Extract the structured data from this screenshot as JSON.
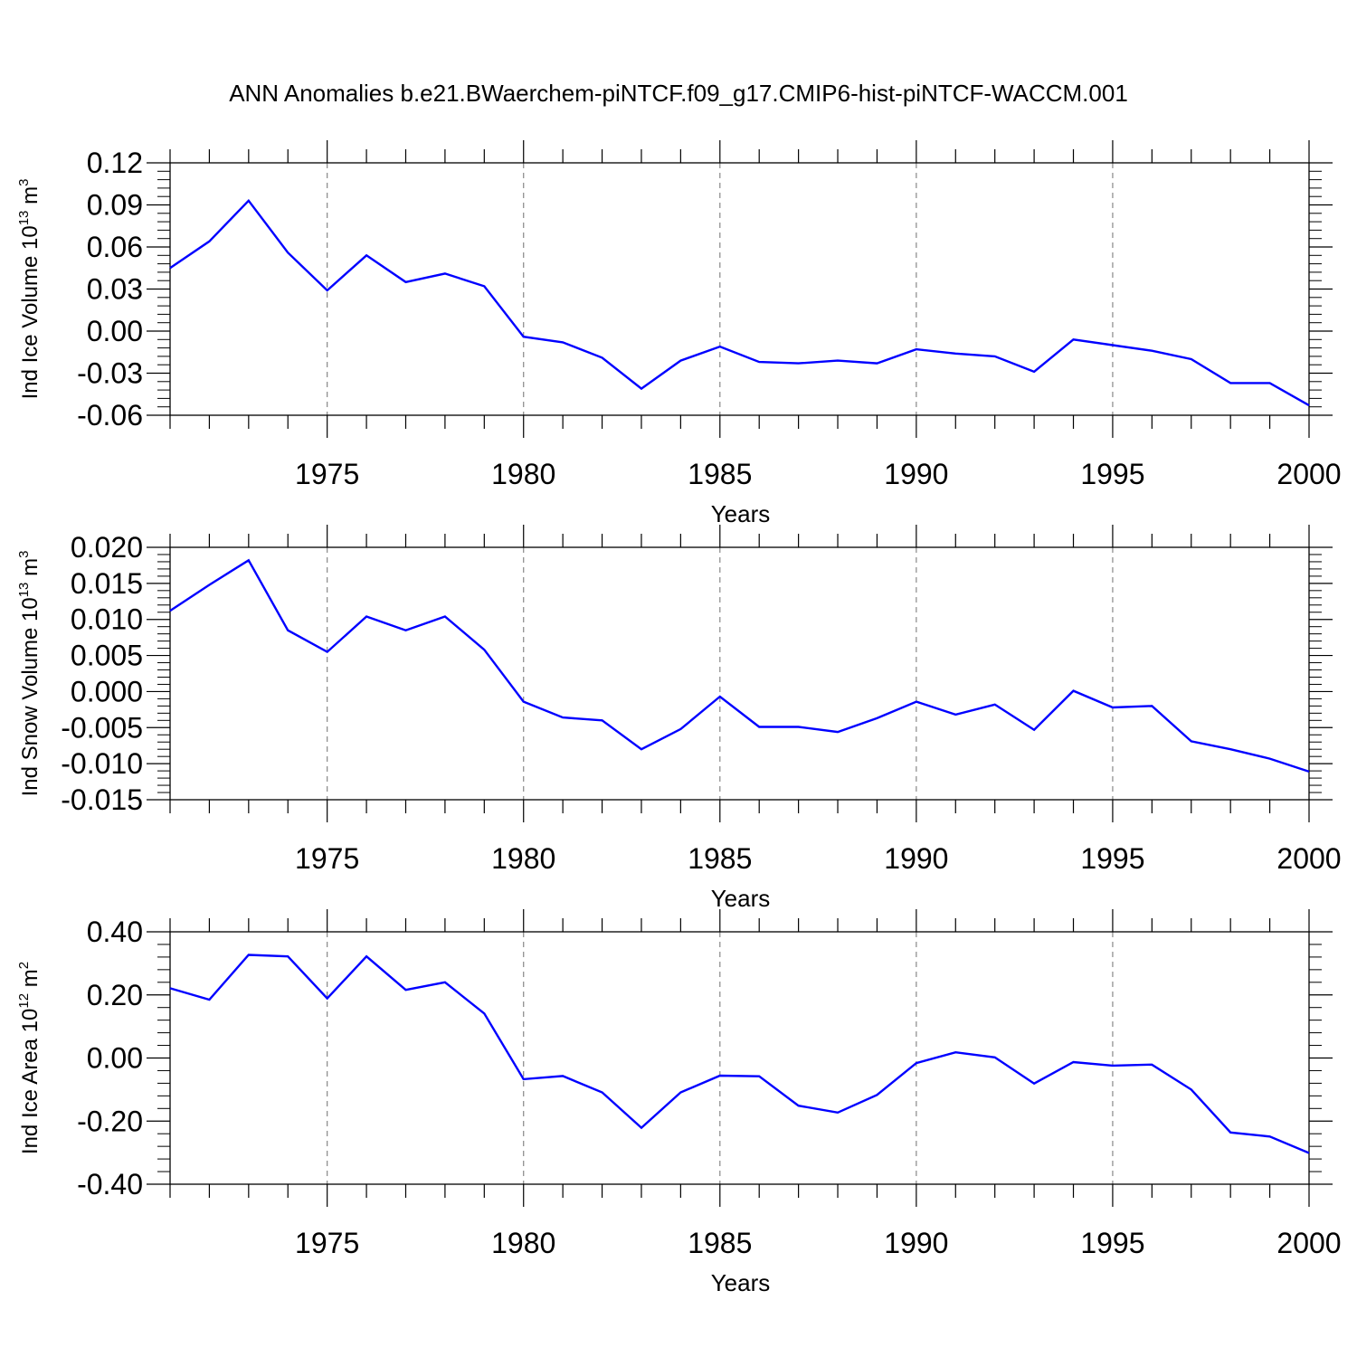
{
  "figure_title": "ANN Anomalies b.e21.BWaerchem-piNTCF.f09_g17.CMIP6-hist-piNTCF-WACCM.001",
  "chart_data": [
    {
      "type": "line",
      "title": "",
      "xlabel": "Years",
      "ylabel": {
        "text": "Ind Ice Volume 10",
        "sup": "13",
        "unit": " m",
        "unit_sup": "3"
      },
      "xlim": [
        1971,
        2000
      ],
      "ylim": [
        -0.06,
        0.12
      ],
      "xticks": [
        1975,
        1980,
        1985,
        1990,
        1995,
        2000
      ],
      "xtick_labels": [
        "1975",
        "1980",
        "1985",
        "1990",
        "1995",
        "2000"
      ],
      "yticks": [
        -0.06,
        -0.03,
        0.0,
        0.03,
        0.06,
        0.09,
        0.12
      ],
      "ytick_labels": [
        "-0.06",
        "-0.03",
        "0.00",
        "0.03",
        "0.06",
        "0.09",
        "0.12"
      ],
      "grid": "vertical dashed at major x ticks",
      "color": "#0000ff",
      "series": [
        {
          "x": [
            1971,
            1972,
            1973,
            1974,
            1975,
            1976,
            1977,
            1978,
            1979,
            1980,
            1981,
            1982,
            1983,
            1984,
            1985,
            1986,
            1987,
            1988,
            1989,
            1990,
            1991,
            1992,
            1993,
            1994,
            1995,
            1996,
            1997,
            1998,
            1999,
            2000
          ],
          "values": [
            0.045,
            0.064,
            0.093,
            0.056,
            0.029,
            0.054,
            0.035,
            0.041,
            0.032,
            -0.004,
            -0.008,
            -0.019,
            -0.041,
            -0.021,
            -0.011,
            -0.022,
            -0.023,
            -0.021,
            -0.023,
            -0.013,
            -0.016,
            -0.018,
            -0.029,
            -0.006,
            -0.01,
            -0.014,
            -0.02,
            -0.037,
            -0.037,
            -0.053
          ]
        }
      ]
    },
    {
      "type": "line",
      "title": "",
      "xlabel": "Years",
      "ylabel": {
        "text": "Ind Snow Volume 10",
        "sup": "13",
        "unit": " m",
        "unit_sup": "3"
      },
      "xlim": [
        1971,
        2000
      ],
      "ylim": [
        -0.015,
        0.02
      ],
      "xticks": [
        1975,
        1980,
        1985,
        1990,
        1995,
        2000
      ],
      "xtick_labels": [
        "1975",
        "1980",
        "1985",
        "1990",
        "1995",
        "2000"
      ],
      "yticks": [
        -0.015,
        -0.01,
        -0.005,
        0.0,
        0.005,
        0.01,
        0.015,
        0.02
      ],
      "ytick_labels": [
        "-0.015",
        "-0.010",
        "-0.005",
        "0.000",
        "0.005",
        "0.010",
        "0.015",
        "0.020"
      ],
      "grid": "vertical dashed at major x ticks",
      "color": "#0000ff",
      "series": [
        {
          "x": [
            1971,
            1972,
            1973,
            1974,
            1975,
            1976,
            1977,
            1978,
            1979,
            1980,
            1981,
            1982,
            1983,
            1984,
            1985,
            1986,
            1987,
            1988,
            1989,
            1990,
            1991,
            1992,
            1993,
            1994,
            1995,
            1996,
            1997,
            1998,
            1999,
            2000
          ],
          "values": [
            0.0112,
            0.0148,
            0.0182,
            0.0085,
            0.0055,
            0.0104,
            0.0085,
            0.0104,
            0.0058,
            -0.0014,
            -0.0036,
            -0.004,
            -0.008,
            -0.0052,
            -0.0007,
            -0.0049,
            -0.0049,
            -0.0056,
            -0.0037,
            -0.0014,
            -0.0032,
            -0.0018,
            -0.0053,
            0.0001,
            -0.0022,
            -0.002,
            -0.0069,
            -0.008,
            -0.0093,
            -0.0111
          ]
        }
      ]
    },
    {
      "type": "line",
      "title": "",
      "xlabel": "Years",
      "ylabel": {
        "text": "Ind Ice Area 10",
        "sup": "12",
        "unit": " m",
        "unit_sup": "2"
      },
      "xlim": [
        1971,
        2000
      ],
      "ylim": [
        -0.4,
        0.4
      ],
      "xticks": [
        1975,
        1980,
        1985,
        1990,
        1995,
        2000
      ],
      "xtick_labels": [
        "1975",
        "1980",
        "1985",
        "1990",
        "1995",
        "2000"
      ],
      "yticks": [
        -0.4,
        -0.2,
        0.0,
        0.2,
        0.4
      ],
      "ytick_labels": [
        "-0.40",
        "-0.20",
        "0.00",
        "0.20",
        "0.40"
      ],
      "grid": "vertical dashed at major x ticks",
      "color": "#0000ff",
      "series": [
        {
          "x": [
            1971,
            1972,
            1973,
            1974,
            1975,
            1976,
            1977,
            1978,
            1979,
            1980,
            1981,
            1982,
            1983,
            1984,
            1985,
            1986,
            1987,
            1988,
            1989,
            1990,
            1991,
            1992,
            1993,
            1994,
            1995,
            1996,
            1997,
            1998,
            1999,
            2000
          ],
          "values": [
            0.221,
            0.185,
            0.327,
            0.322,
            0.189,
            0.322,
            0.216,
            0.24,
            0.141,
            -0.067,
            -0.057,
            -0.109,
            -0.221,
            -0.109,
            -0.056,
            -0.058,
            -0.151,
            -0.173,
            -0.117,
            -0.016,
            0.018,
            0.002,
            -0.081,
            -0.013,
            -0.024,
            -0.021,
            -0.1,
            -0.236,
            -0.249,
            -0.301
          ]
        }
      ]
    }
  ]
}
